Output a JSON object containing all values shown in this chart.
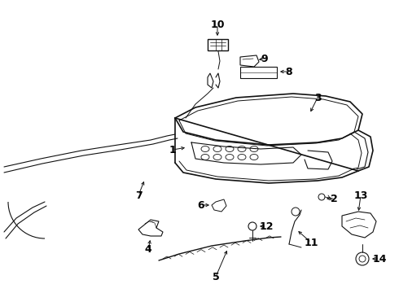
{
  "bg_color": "#ffffff",
  "line_color": "#111111",
  "label_color": "#000000",
  "fig_width": 4.9,
  "fig_height": 3.6,
  "dpi": 100
}
